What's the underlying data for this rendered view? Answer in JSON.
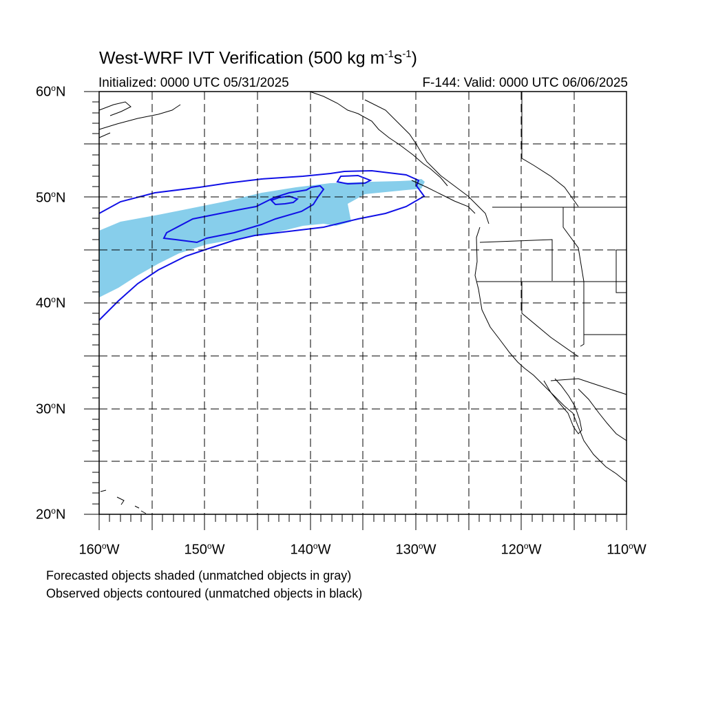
{
  "map": {
    "title": "West-WRF IVT Verification (500 kg m",
    "title_sup1": "-1",
    "title_mid": "s",
    "title_sup2": "-1",
    "title_end": ")",
    "init_text": "Initialized: 0000 UTC 05/31/2025",
    "valid_text": "F-144: Valid: 0000 UTC 06/06/2025",
    "lat_labels": [
      "60",
      "50",
      "40",
      "30",
      "20"
    ],
    "lat_suffix": "N",
    "lon_labels": [
      "160",
      "150",
      "140",
      "130",
      "120",
      "110"
    ],
    "lon_suffix": "W",
    "degree_symbol": "o",
    "extent": {
      "lon_min": -160,
      "lon_max": -110,
      "lat_min": 20,
      "lat_max": 60
    },
    "colors": {
      "forecast_shade": "#87ceeb",
      "observed_contour": "#1010e6",
      "coast": "#000000",
      "grid": "#000000"
    },
    "footnote_1": "Forecasted objects shaded (unmatched objects in gray)",
    "footnote_2": "Observed objects contoured (unmatched objects in black)"
  }
}
